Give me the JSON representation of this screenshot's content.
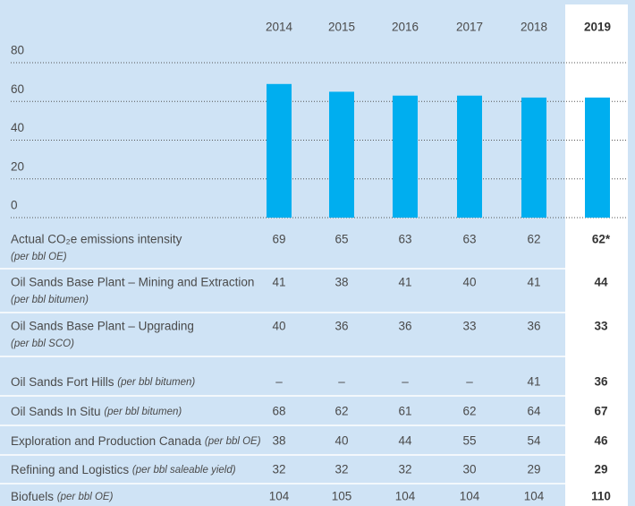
{
  "chart_data": {
    "type": "bar",
    "categories": [
      "2014",
      "2015",
      "2016",
      "2017",
      "2018",
      "2019"
    ],
    "values": [
      69,
      65,
      63,
      63,
      62,
      62
    ],
    "value_labels": [
      "69",
      "65",
      "63",
      "63",
      "62",
      "62*"
    ],
    "color": "#00aeef",
    "ylim": [
      0,
      80
    ],
    "yticks": [
      0,
      20,
      40,
      60,
      80
    ],
    "grid": true,
    "label": "Actual CO₂e emissions intensity",
    "unit": "(per bbl OE)"
  },
  "table": {
    "rows": [
      {
        "label": "Oil Sands Base Plant – Mining and Extraction",
        "unit": "(per bbl bitumen)",
        "values": [
          "41",
          "38",
          "41",
          "40",
          "41",
          "44"
        ]
      },
      {
        "label": "Oil Sands Base Plant – Upgrading",
        "unit": "(per bbl SCO)",
        "values": [
          "40",
          "36",
          "36",
          "33",
          "36",
          "33"
        ]
      },
      {
        "label": "Oil Sands Fort Hills",
        "unit": "(per bbl bitumen)",
        "values": [
          "–",
          "–",
          "–",
          "–",
          "41",
          "36"
        ]
      },
      {
        "label": "Oil Sands In Situ",
        "unit": "(per bbl bitumen)",
        "values": [
          "68",
          "62",
          "61",
          "62",
          "64",
          "67"
        ]
      },
      {
        "label": "Exploration and Production Canada",
        "unit": "(per bbl OE)",
        "values": [
          "38",
          "40",
          "44",
          "55",
          "54",
          "46"
        ]
      },
      {
        "label": "Refining and Logistics",
        "unit": "(per bbl saleable yield)",
        "values": [
          "32",
          "32",
          "32",
          "30",
          "29",
          "29"
        ]
      },
      {
        "label": "Biofuels",
        "unit": "(per bbl OE)",
        "values": [
          "104",
          "105",
          "104",
          "104",
          "104",
          "110"
        ]
      }
    ]
  }
}
